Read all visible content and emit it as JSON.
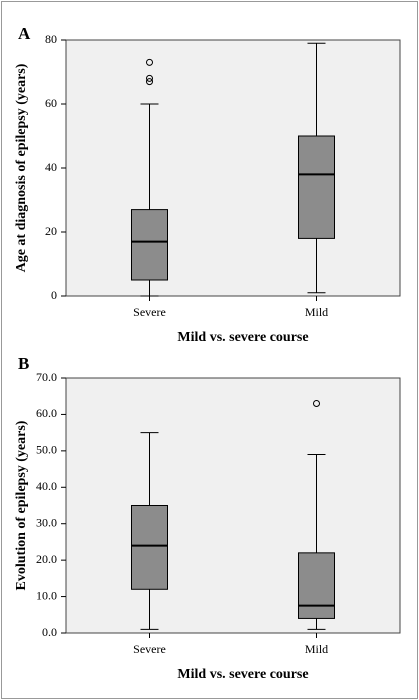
{
  "chart_data": [
    {
      "type": "box",
      "panel": "A",
      "ylabel": "Age at diagnosis of epilepsy (years)",
      "xlabel": "Mild vs. severe course",
      "categories": [
        "Severe",
        "Mild"
      ],
      "color": "#8c8c8c",
      "boxes": [
        {
          "min": 0,
          "q1": 5,
          "median": 17,
          "q3": 27,
          "max": 60,
          "outliers": [
            67,
            68,
            73
          ]
        },
        {
          "min": 1,
          "q1": 18,
          "median": 38,
          "q3": 50,
          "max": 79,
          "outliers": []
        }
      ],
      "ylim": [
        0,
        80
      ],
      "yticks": [
        0,
        20,
        40,
        60,
        80
      ]
    },
    {
      "type": "box",
      "panel": "B",
      "ylabel": "Evolution of epilepsy (years)",
      "xlabel": "Mild vs. severe course",
      "categories": [
        "Severe",
        "Mild"
      ],
      "color": "#8c8c8c",
      "boxes": [
        {
          "min": 1,
          "q1": 12,
          "median": 24,
          "q3": 35,
          "max": 55,
          "outliers": []
        },
        {
          "min": 1,
          "q1": 4,
          "median": 7.5,
          "q3": 22,
          "max": 49,
          "outliers": [
            63
          ]
        }
      ],
      "ylim": [
        0,
        70
      ],
      "yticks": [
        {
          "value": 0,
          "label": "0.0"
        },
        {
          "value": 10,
          "label": "10.0"
        },
        {
          "value": 20,
          "label": "20.0"
        },
        {
          "value": 30,
          "label": "30.0"
        },
        {
          "value": 40,
          "label": "40.0"
        },
        {
          "value": 50,
          "label": "50.0"
        },
        {
          "value": 60,
          "label": "60.0"
        },
        {
          "value": 70,
          "label": "70.0"
        }
      ]
    }
  ]
}
